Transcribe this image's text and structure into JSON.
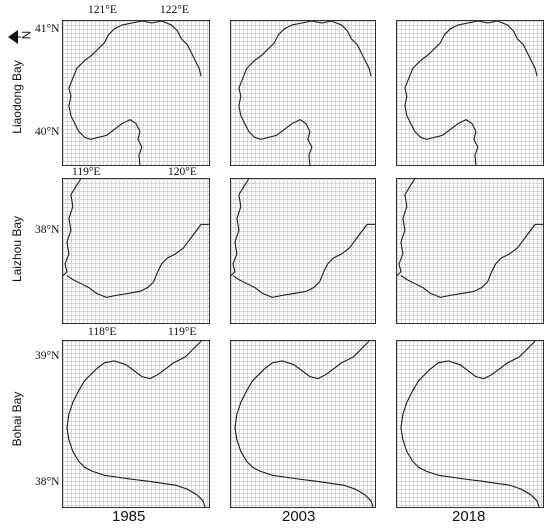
{
  "north_label": "N",
  "rows": [
    {
      "label": "Liaodong Bay",
      "x_ticks": [
        "121°E",
        "122°E"
      ],
      "y_ticks": [
        "41°N",
        "40°N"
      ]
    },
    {
      "label": "Laizhou Bay",
      "x_ticks": [
        "119°E",
        "120°E"
      ],
      "y_ticks": [
        "38°N"
      ]
    },
    {
      "label": "Bohai Bay",
      "x_ticks": [
        "118°E",
        "119°E"
      ],
      "y_ticks": [
        "39°N",
        "38°N"
      ]
    }
  ],
  "years": [
    "1985",
    "2003",
    "2018"
  ]
}
